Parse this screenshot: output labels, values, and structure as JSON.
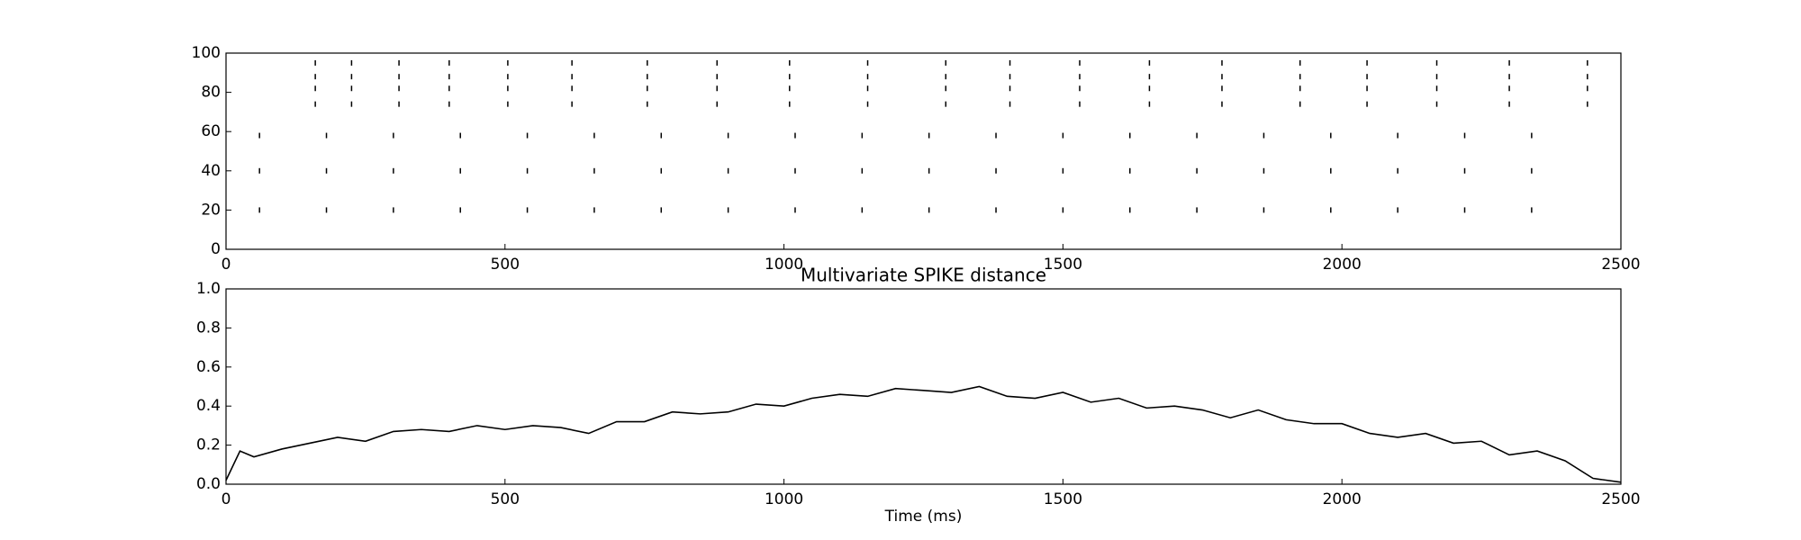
{
  "chart_data": [
    {
      "type": "raster",
      "xlim": [
        0,
        2500
      ],
      "xticks": [
        0,
        500,
        1000,
        1500,
        2000,
        2500
      ],
      "ylim": [
        0,
        100
      ],
      "yticks": [
        0,
        20,
        40,
        60,
        80,
        100
      ],
      "color": "#000000",
      "x": [
        160,
        160,
        160,
        160,
        225,
        225,
        225,
        225,
        310,
        310,
        310,
        310,
        400,
        400,
        400,
        400,
        505,
        505,
        505,
        505,
        620,
        620,
        620,
        620,
        755,
        755,
        755,
        755,
        880,
        880,
        880,
        880,
        1010,
        1010,
        1010,
        1010,
        1150,
        1150,
        1150,
        1150,
        1290,
        1290,
        1290,
        1290,
        1405,
        1405,
        1405,
        1405,
        1530,
        1530,
        1530,
        1530,
        1655,
        1655,
        1655,
        1655,
        1785,
        1785,
        1785,
        1785,
        1925,
        1925,
        1925,
        1925,
        2045,
        2045,
        2045,
        2045,
        2170,
        2170,
        2170,
        2170,
        2300,
        2300,
        2300,
        2300,
        2440,
        2440,
        2440,
        2440,
        60,
        60,
        60,
        180,
        180,
        180,
        300,
        300,
        300,
        420,
        420,
        420,
        540,
        540,
        540,
        660,
        660,
        660,
        780,
        780,
        780,
        900,
        900,
        900,
        1020,
        1020,
        1020,
        1140,
        1140,
        1140,
        1260,
        1260,
        1260,
        1380,
        1380,
        1380,
        1500,
        1500,
        1500,
        1620,
        1620,
        1620,
        1740,
        1740,
        1740,
        1860,
        1860,
        1860,
        1980,
        1980,
        1980,
        2100,
        2100,
        2100,
        2220,
        2220,
        2220,
        2340,
        2340,
        2340
      ],
      "y": [
        74,
        82,
        88,
        95,
        74,
        82,
        88,
        95,
        74,
        82,
        88,
        95,
        74,
        82,
        88,
        95,
        74,
        82,
        88,
        95,
        74,
        82,
        88,
        95,
        74,
        82,
        88,
        95,
        74,
        82,
        88,
        95,
        74,
        82,
        88,
        95,
        74,
        82,
        88,
        95,
        74,
        82,
        88,
        95,
        74,
        82,
        88,
        95,
        74,
        82,
        88,
        95,
        74,
        82,
        88,
        95,
        74,
        82,
        88,
        95,
        74,
        82,
        88,
        95,
        74,
        82,
        88,
        95,
        74,
        82,
        88,
        95,
        74,
        82,
        88,
        95,
        74,
        82,
        88,
        95,
        20,
        40,
        58,
        20,
        40,
        58,
        20,
        40,
        58,
        20,
        40,
        58,
        20,
        40,
        58,
        20,
        40,
        58,
        20,
        40,
        58,
        20,
        40,
        58,
        20,
        40,
        58,
        20,
        40,
        58,
        20,
        40,
        58,
        20,
        40,
        58,
        20,
        40,
        58,
        20,
        40,
        58,
        20,
        40,
        58,
        20,
        40,
        58,
        20,
        40,
        58,
        20,
        40,
        58,
        20,
        40,
        58,
        20,
        40,
        58
      ]
    },
    {
      "type": "line",
      "title": "Multivariate SPIKE distance",
      "xlabel": "Time (ms)",
      "xlim": [
        0,
        2500
      ],
      "xticks": [
        0,
        500,
        1000,
        1500,
        2000,
        2500
      ],
      "ylim": [
        0,
        1
      ],
      "yticks": [
        {
          "value": 0,
          "label": "0.0"
        },
        0.2,
        0.4,
        0.6,
        0.8,
        {
          "value": 1,
          "label": "1.0"
        }
      ],
      "color": "#000000",
      "x": [
        0,
        25,
        50,
        100,
        150,
        200,
        250,
        300,
        350,
        400,
        450,
        500,
        550,
        600,
        650,
        700,
        750,
        800,
        850,
        900,
        950,
        1000,
        1050,
        1100,
        1150,
        1200,
        1250,
        1300,
        1350,
        1400,
        1450,
        1500,
        1550,
        1600,
        1650,
        1700,
        1750,
        1800,
        1850,
        1900,
        1950,
        2000,
        2050,
        2100,
        2150,
        2200,
        2250,
        2300,
        2350,
        2400,
        2450,
        2500
      ],
      "values": [
        0.02,
        0.17,
        0.14,
        0.18,
        0.21,
        0.24,
        0.22,
        0.27,
        0.28,
        0.27,
        0.3,
        0.28,
        0.3,
        0.29,
        0.26,
        0.32,
        0.32,
        0.37,
        0.36,
        0.37,
        0.41,
        0.4,
        0.44,
        0.46,
        0.45,
        0.49,
        0.48,
        0.47,
        0.5,
        0.45,
        0.44,
        0.47,
        0.42,
        0.44,
        0.39,
        0.4,
        0.38,
        0.34,
        0.38,
        0.33,
        0.31,
        0.31,
        0.26,
        0.24,
        0.26,
        0.21,
        0.22,
        0.15,
        0.17,
        0.12,
        0.03,
        0.01
      ]
    }
  ]
}
